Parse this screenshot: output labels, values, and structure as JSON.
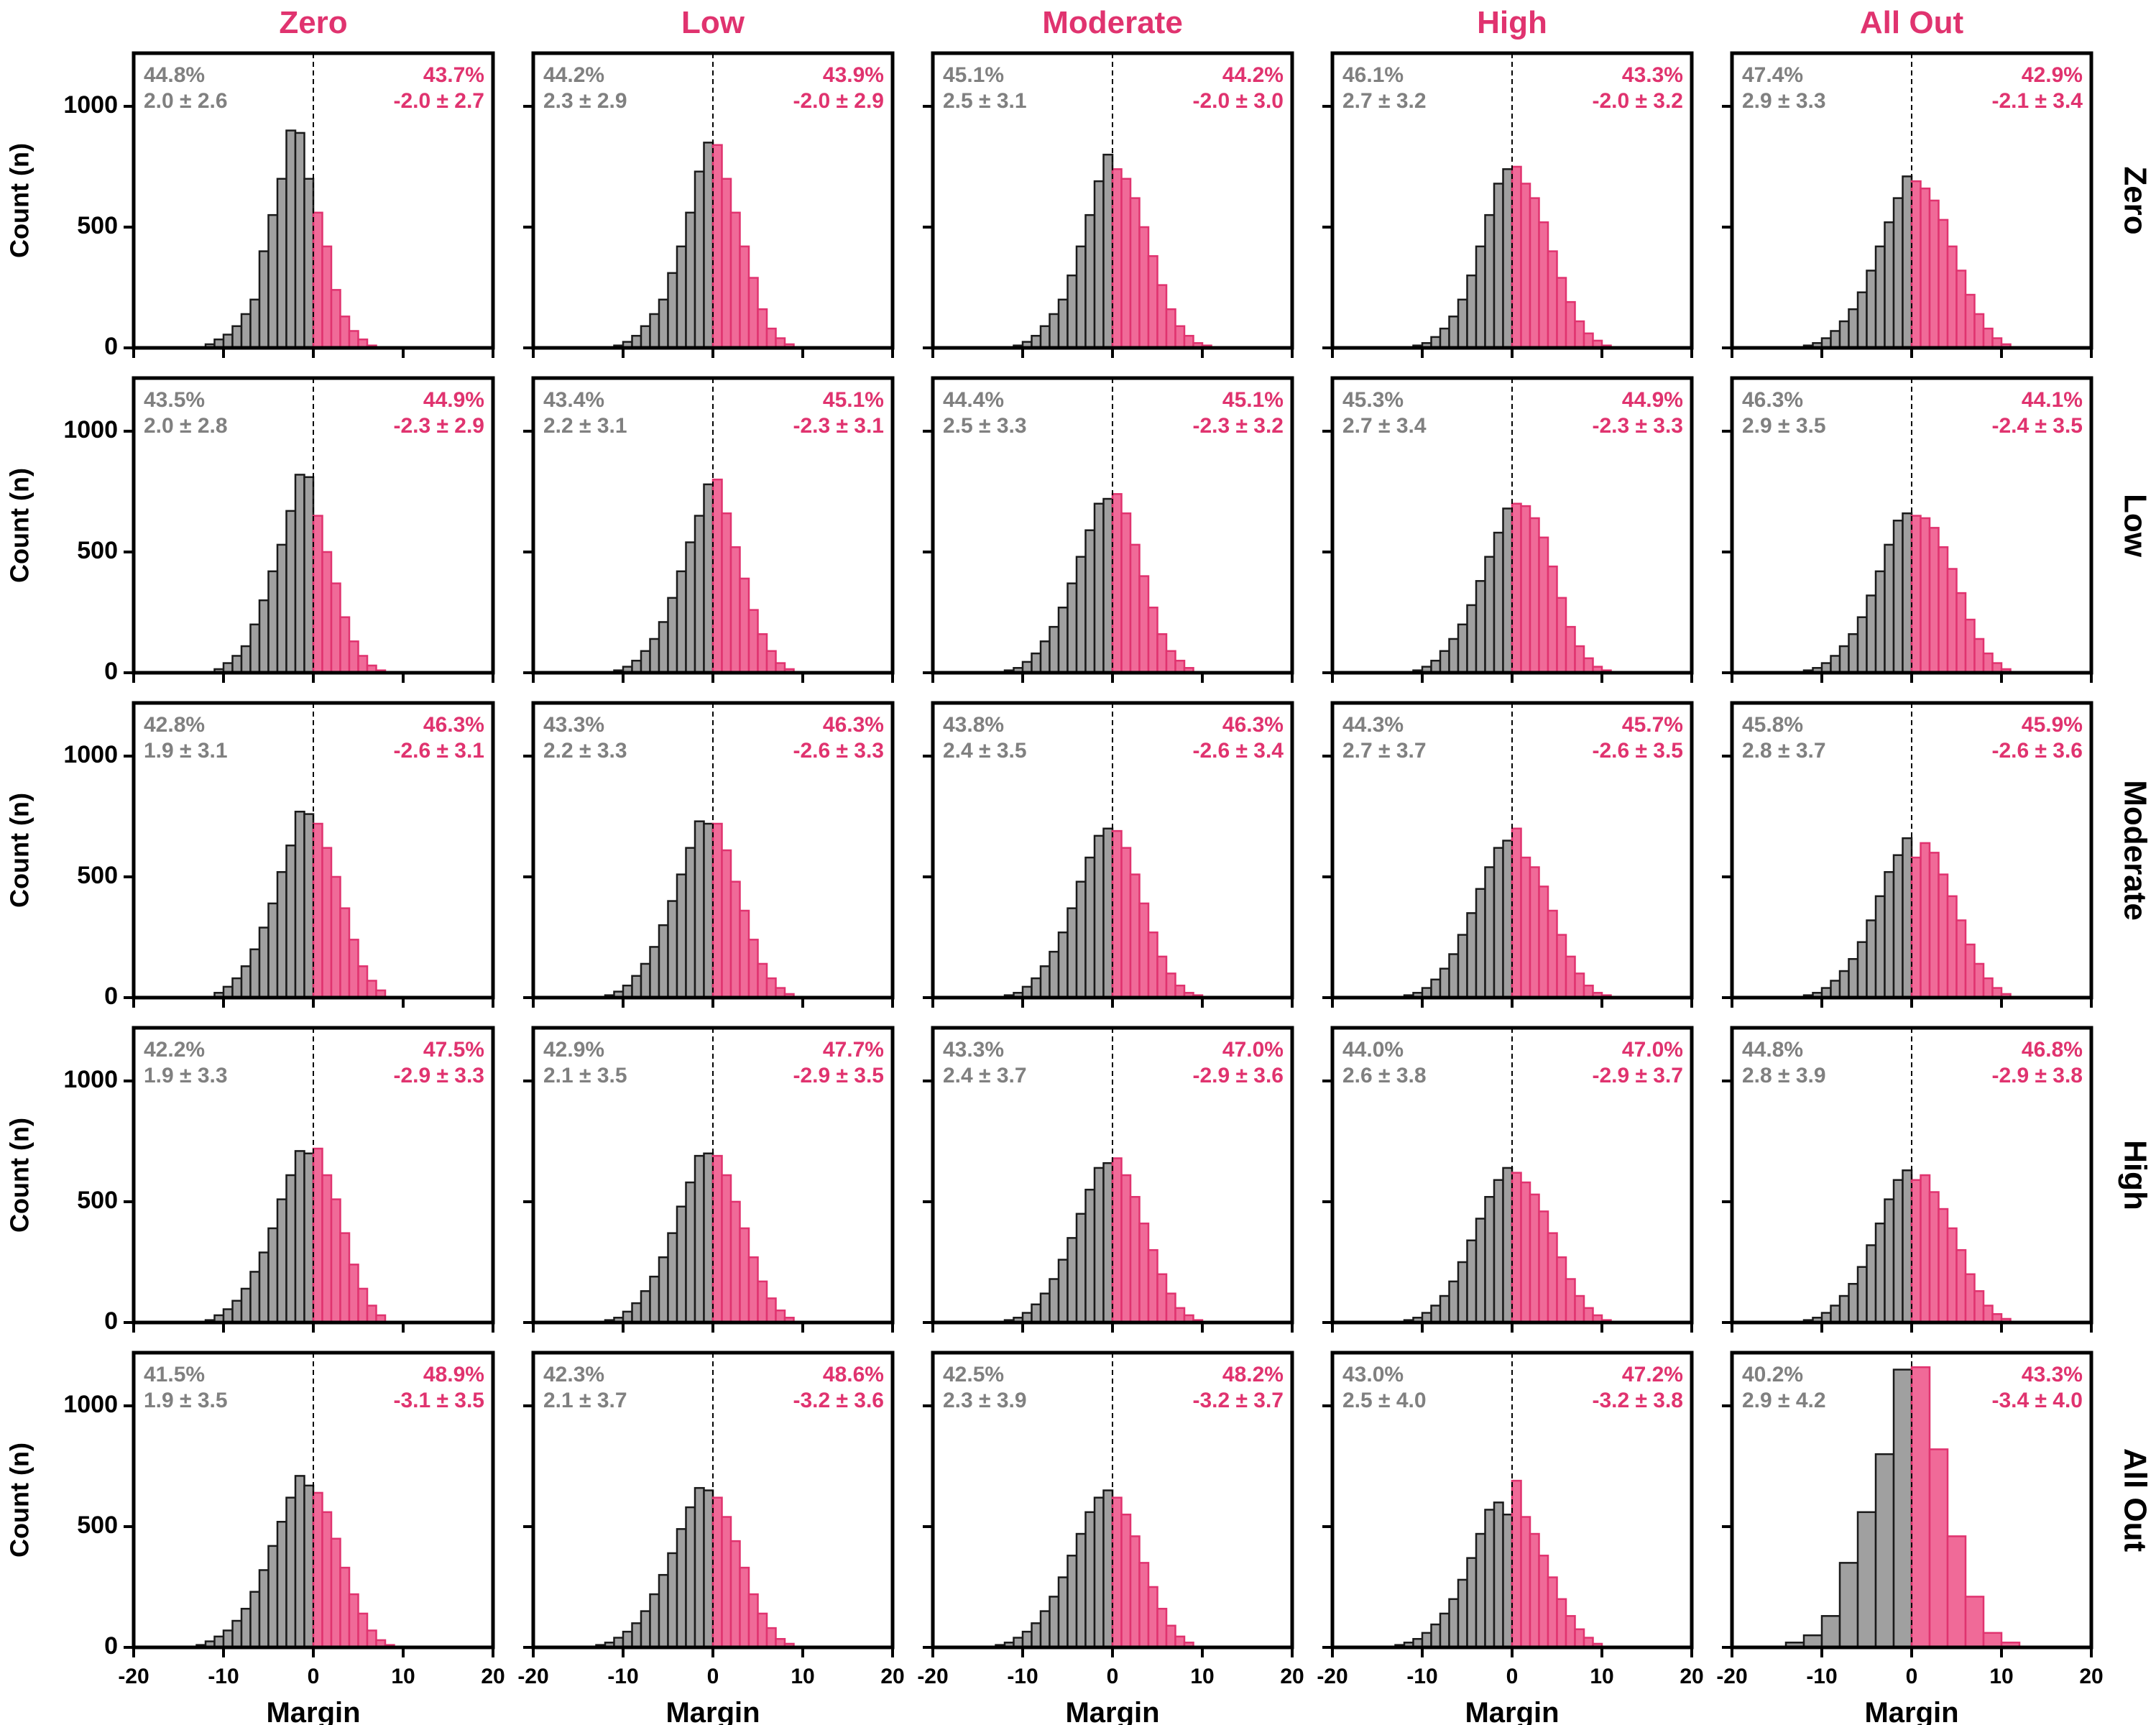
{
  "colors": {
    "grey_fill": "#a0a0a0",
    "grey_edge": "#1a1a1a",
    "grey_text": "#808080",
    "pink_fill": "#f06a98",
    "pink_edge": "#e0336f",
    "pink_text": "#e0336f",
    "axis": "#000000"
  },
  "chart_data": {
    "type": "bar",
    "layout": "5x5 grid of histograms",
    "column_titles": [
      "Zero",
      "Low",
      "Moderate",
      "High",
      "All Out"
    ],
    "row_titles": [
      "Zero",
      "Low",
      "Moderate",
      "High",
      "All Out"
    ],
    "xlabel": "Margin",
    "ylabel": "Count (n)",
    "xlim": [
      -20,
      20
    ],
    "ylim": [
      0,
      1220
    ],
    "xticks": [
      "-20",
      "-10",
      "0",
      "10",
      "20"
    ],
    "yticks": [
      "0",
      "500",
      "1000"
    ],
    "zero_line": "dashed vertical line at x = 0",
    "bin_width": 1,
    "panels": [
      [
        {
          "row": "Zero",
          "col": "Zero",
          "left_pct": "44.8%",
          "left_stat": "2.0 ± 2.6",
          "right_pct": "43.7%",
          "right_stat": "-2.0 ± 2.7",
          "bin_start": -12,
          "counts": [
            15,
            35,
            55,
            90,
            140,
            200,
            400,
            550,
            700,
            900,
            890,
            700,
            560,
            420,
            240,
            130,
            70,
            35,
            10
          ]
        },
        {
          "row": "Zero",
          "col": "Low",
          "left_pct": "44.2%",
          "left_stat": "2.3 ± 2.9",
          "right_pct": "43.9%",
          "right_stat": "-2.0 ± 2.9",
          "bin_start": -11,
          "counts": [
            10,
            25,
            50,
            90,
            140,
            200,
            310,
            420,
            560,
            730,
            850,
            840,
            700,
            560,
            420,
            290,
            160,
            80,
            40,
            15
          ]
        },
        {
          "row": "Zero",
          "col": "Moderate",
          "left_pct": "45.1%",
          "left_stat": "2.5 ± 3.1",
          "right_pct": "44.2%",
          "right_stat": "-2.0 ± 3.0",
          "bin_start": -11,
          "counts": [
            10,
            25,
            50,
            90,
            140,
            200,
            300,
            420,
            550,
            690,
            800,
            740,
            700,
            620,
            500,
            380,
            260,
            160,
            90,
            50,
            20,
            10
          ]
        },
        {
          "row": "Zero",
          "col": "High",
          "left_pct": "46.1%",
          "left_stat": "2.7 ± 3.2",
          "right_pct": "43.3%",
          "right_stat": "-2.0 ± 3.2",
          "bin_start": -11,
          "counts": [
            10,
            20,
            45,
            80,
            130,
            200,
            300,
            420,
            550,
            680,
            740,
            750,
            680,
            620,
            520,
            400,
            290,
            190,
            110,
            60,
            30,
            10
          ]
        },
        {
          "row": "Zero",
          "col": "All Out",
          "left_pct": "47.4%",
          "left_stat": "2.9 ± 3.3",
          "right_pct": "42.9%",
          "right_stat": "-2.1 ± 3.4",
          "bin_start": -12,
          "counts": [
            10,
            20,
            40,
            70,
            110,
            160,
            230,
            320,
            420,
            520,
            620,
            710,
            690,
            660,
            610,
            530,
            420,
            320,
            220,
            140,
            80,
            40,
            15
          ]
        }
      ],
      [
        {
          "row": "Low",
          "col": "Zero",
          "left_pct": "43.5%",
          "left_stat": "2.0 ± 2.8",
          "right_pct": "44.9%",
          "right_stat": "-2.3 ± 2.9",
          "bin_start": -11,
          "counts": [
            15,
            40,
            70,
            110,
            200,
            300,
            420,
            530,
            670,
            820,
            810,
            650,
            500,
            370,
            230,
            130,
            70,
            30,
            10
          ]
        },
        {
          "row": "Low",
          "col": "Low",
          "left_pct": "43.4%",
          "left_stat": "2.2 ± 3.1",
          "right_pct": "45.1%",
          "right_stat": "-2.3 ± 3.1",
          "bin_start": -11,
          "counts": [
            10,
            25,
            50,
            90,
            140,
            210,
            310,
            420,
            540,
            650,
            780,
            800,
            660,
            520,
            390,
            260,
            160,
            90,
            40,
            15
          ]
        },
        {
          "row": "Low",
          "col": "Moderate",
          "left_pct": "44.4%",
          "left_stat": "2.5 ± 3.3",
          "right_pct": "45.1%",
          "right_stat": "-2.3 ± 3.2",
          "bin_start": -12,
          "counts": [
            10,
            20,
            45,
            80,
            130,
            190,
            270,
            370,
            480,
            590,
            700,
            720,
            740,
            660,
            530,
            400,
            270,
            160,
            90,
            50,
            20
          ]
        },
        {
          "row": "Low",
          "col": "High",
          "left_pct": "45.3%",
          "left_stat": "2.7 ± 3.4",
          "right_pct": "44.9%",
          "right_stat": "-2.3 ± 3.3",
          "bin_start": -11,
          "counts": [
            10,
            25,
            50,
            90,
            140,
            200,
            280,
            380,
            480,
            580,
            680,
            700,
            690,
            640,
            560,
            440,
            310,
            190,
            110,
            60,
            25,
            10
          ]
        },
        {
          "row": "Low",
          "col": "All Out",
          "left_pct": "46.3%",
          "left_stat": "2.9 ± 3.5",
          "right_pct": "44.1%",
          "right_stat": "-2.4 ± 3.5",
          "bin_start": -12,
          "counts": [
            10,
            20,
            40,
            70,
            110,
            160,
            230,
            320,
            420,
            530,
            630,
            660,
            650,
            640,
            600,
            520,
            430,
            330,
            220,
            140,
            80,
            40,
            15
          ]
        }
      ],
      [
        {
          "row": "Moderate",
          "col": "Zero",
          "left_pct": "42.8%",
          "left_stat": "1.9 ± 3.1",
          "right_pct": "46.3%",
          "right_stat": "-2.6 ± 3.1",
          "bin_start": -11,
          "counts": [
            20,
            45,
            80,
            130,
            200,
            290,
            390,
            520,
            630,
            770,
            760,
            720,
            620,
            500,
            370,
            240,
            130,
            70,
            30
          ]
        },
        {
          "row": "Moderate",
          "col": "Low",
          "left_pct": "43.3%",
          "left_stat": "2.2 ± 3.3",
          "right_pct": "46.3%",
          "right_stat": "-2.6 ± 3.3",
          "bin_start": -12,
          "counts": [
            10,
            25,
            50,
            90,
            140,
            210,
            300,
            400,
            510,
            620,
            730,
            720,
            720,
            610,
            480,
            360,
            240,
            140,
            80,
            40,
            15
          ]
        },
        {
          "row": "Moderate",
          "col": "Moderate",
          "left_pct": "43.8%",
          "left_stat": "2.4 ± 3.5",
          "right_pct": "46.3%",
          "right_stat": "-2.6 ± 3.4",
          "bin_start": -12,
          "counts": [
            10,
            20,
            45,
            80,
            130,
            190,
            270,
            370,
            480,
            580,
            670,
            700,
            690,
            620,
            510,
            390,
            270,
            170,
            100,
            50,
            20,
            10
          ]
        },
        {
          "row": "Moderate",
          "col": "High",
          "left_pct": "44.3%",
          "left_stat": "2.7 ± 3.7",
          "right_pct": "45.7%",
          "right_stat": "-2.6 ± 3.5",
          "bin_start": -12,
          "counts": [
            10,
            20,
            40,
            75,
            120,
            180,
            260,
            350,
            450,
            540,
            620,
            650,
            700,
            580,
            540,
            460,
            360,
            260,
            170,
            100,
            50,
            20,
            10
          ]
        },
        {
          "row": "Moderate",
          "col": "All Out",
          "left_pct": "45.8%",
          "left_stat": "2.8 ± 3.7",
          "right_pct": "45.9%",
          "right_stat": "-2.6 ± 3.6",
          "bin_start": -12,
          "counts": [
            10,
            20,
            40,
            70,
            110,
            160,
            230,
            320,
            420,
            520,
            590,
            660,
            580,
            640,
            600,
            510,
            420,
            320,
            220,
            140,
            80,
            40,
            15
          ]
        }
      ],
      [
        {
          "row": "High",
          "col": "Zero",
          "left_pct": "42.2%",
          "left_stat": "1.9 ± 3.3",
          "right_pct": "47.5%",
          "right_stat": "-2.9 ± 3.3",
          "bin_start": -12,
          "counts": [
            10,
            30,
            55,
            90,
            140,
            210,
            290,
            390,
            510,
            610,
            710,
            700,
            720,
            610,
            510,
            370,
            240,
            140,
            70,
            30
          ]
        },
        {
          "row": "High",
          "col": "Low",
          "left_pct": "42.9%",
          "left_stat": "2.1 ± 3.5",
          "right_pct": "47.7%",
          "right_stat": "-2.9 ± 3.5",
          "bin_start": -12,
          "counts": [
            10,
            20,
            45,
            80,
            130,
            190,
            270,
            370,
            480,
            580,
            690,
            700,
            690,
            610,
            500,
            390,
            270,
            170,
            100,
            50,
            20
          ]
        },
        {
          "row": "High",
          "col": "Moderate",
          "left_pct": "43.3%",
          "left_stat": "2.4 ± 3.7",
          "right_pct": "47.0%",
          "right_stat": "-2.9 ± 3.6",
          "bin_start": -12,
          "counts": [
            10,
            20,
            40,
            75,
            120,
            180,
            260,
            350,
            450,
            550,
            640,
            660,
            680,
            610,
            520,
            410,
            300,
            200,
            120,
            60,
            30,
            10
          ]
        },
        {
          "row": "High",
          "col": "High",
          "left_pct": "44.0%",
          "left_stat": "2.6 ± 3.8",
          "right_pct": "47.0%",
          "right_stat": "-2.9 ± 3.7",
          "bin_start": -12,
          "counts": [
            10,
            20,
            40,
            70,
            110,
            170,
            250,
            340,
            430,
            520,
            590,
            640,
            620,
            580,
            530,
            460,
            370,
            270,
            180,
            110,
            60,
            30,
            10
          ]
        },
        {
          "row": "High",
          "col": "All Out",
          "left_pct": "44.8%",
          "left_stat": "2.8 ± 3.9",
          "right_pct": "46.8%",
          "right_stat": "-2.9 ± 3.8",
          "bin_start": -12,
          "counts": [
            10,
            20,
            40,
            70,
            110,
            160,
            230,
            320,
            410,
            510,
            590,
            630,
            590,
            610,
            540,
            470,
            390,
            300,
            200,
            130,
            70,
            35,
            15
          ]
        }
      ],
      [
        {
          "row": "All Out",
          "col": "Zero",
          "left_pct": "41.5%",
          "left_stat": "1.9 ± 3.5",
          "right_pct": "48.9%",
          "right_stat": "-3.1 ± 3.5",
          "bin_start": -13,
          "counts": [
            10,
            25,
            45,
            70,
            110,
            160,
            230,
            320,
            420,
            520,
            620,
            710,
            670,
            640,
            560,
            450,
            330,
            220,
            140,
            70,
            30,
            10
          ]
        },
        {
          "row": "All Out",
          "col": "Low",
          "left_pct": "42.3%",
          "left_stat": "2.1 ± 3.7",
          "right_pct": "48.6%",
          "right_stat": "-3.2 ± 3.6",
          "bin_start": -13,
          "counts": [
            10,
            20,
            40,
            65,
            100,
            150,
            220,
            300,
            390,
            490,
            580,
            660,
            650,
            620,
            540,
            440,
            330,
            220,
            140,
            80,
            35,
            15
          ]
        },
        {
          "row": "All Out",
          "col": "Moderate",
          "left_pct": "42.5%",
          "left_stat": "2.3 ± 3.9",
          "right_pct": "48.2%",
          "right_stat": "-3.2 ± 3.7",
          "bin_start": -13,
          "counts": [
            10,
            20,
            40,
            65,
            100,
            150,
            210,
            290,
            380,
            470,
            560,
            620,
            650,
            620,
            550,
            460,
            350,
            250,
            160,
            90,
            45,
            20
          ]
        },
        {
          "row": "All Out",
          "col": "High",
          "left_pct": "43.0%",
          "left_stat": "2.5 ± 4.0",
          "right_pct": "47.2%",
          "right_stat": "-3.2 ± 3.8",
          "bin_start": -13,
          "counts": [
            10,
            20,
            35,
            60,
            95,
            140,
            200,
            280,
            370,
            470,
            570,
            600,
            550,
            690,
            540,
            470,
            380,
            290,
            200,
            130,
            75,
            40,
            15
          ]
        },
        {
          "row": "All Out",
          "col": "All Out",
          "left_pct": "40.2%",
          "left_stat": "2.9 ± 4.2",
          "right_pct": "43.3%",
          "right_stat": "-3.4 ± 4.0",
          "bin_start": -14,
          "bin_width": 2,
          "counts": [
            20,
            50,
            130,
            350,
            560,
            800,
            1150,
            1160,
            820,
            460,
            210,
            60,
            20
          ]
        }
      ]
    ]
  }
}
